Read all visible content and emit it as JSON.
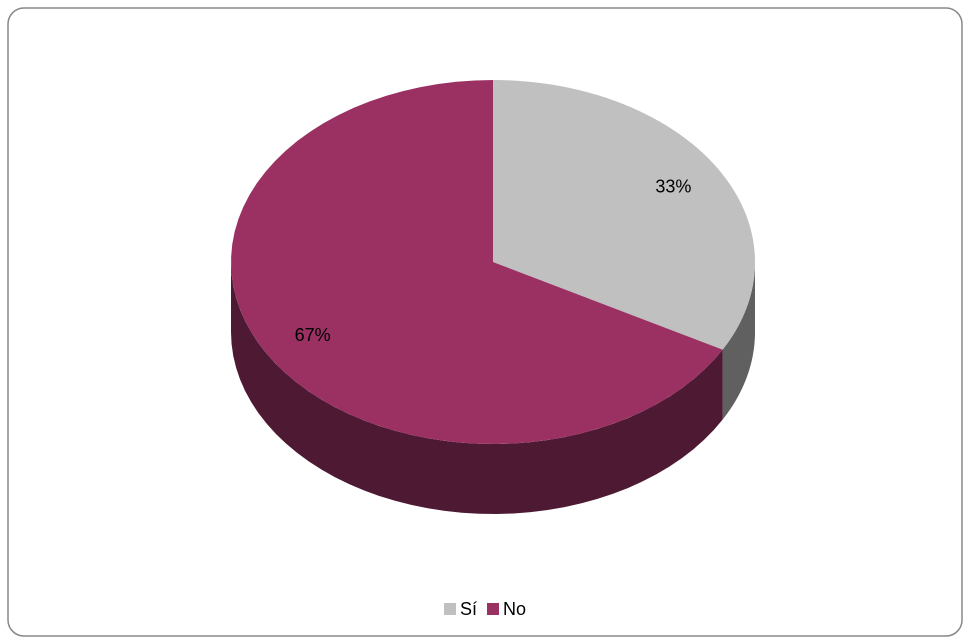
{
  "chart_data": {
    "type": "pie",
    "categories": [
      "Sí",
      "No"
    ],
    "values": [
      33,
      67
    ],
    "value_labels": [
      "33%",
      "67%"
    ],
    "colors": [
      "#c0c0c0",
      "#9b3163"
    ],
    "legend": "bottom"
  }
}
